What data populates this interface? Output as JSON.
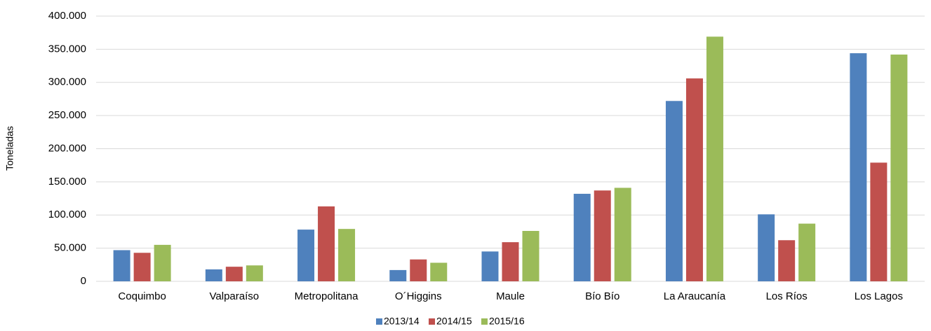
{
  "chart_data": {
    "type": "bar",
    "y_label": "Toneladas",
    "categories": [
      "Coquimbo",
      "Valparaíso",
      "Metropolitana",
      "O´Higgins",
      "Maule",
      "Bío Bío",
      "La Araucanía",
      "Los Ríos",
      "Los Lagos"
    ],
    "series": [
      {
        "name": "2013/14",
        "color": "#4f81bd",
        "values": [
          47000,
          18000,
          78000,
          17000,
          45000,
          132000,
          272000,
          101000,
          344000
        ]
      },
      {
        "name": "2014/15",
        "color": "#c0504d",
        "values": [
          43000,
          22000,
          113000,
          33000,
          59000,
          137000,
          306000,
          62000,
          179000
        ]
      },
      {
        "name": "2015/16",
        "color": "#9bbb59",
        "values": [
          55000,
          24000,
          79000,
          28000,
          76000,
          141000,
          369000,
          87000,
          342000
        ]
      }
    ],
    "ylim": [
      0,
      400000
    ],
    "yticks": [
      0,
      {
        "value": 50000,
        "label": "50.000"
      },
      {
        "value": 100000,
        "label": "100.000"
      },
      {
        "value": 150000,
        "label": "150.000"
      },
      {
        "value": 200000,
        "label": "200.000"
      },
      {
        "value": 250000,
        "label": "250.000"
      },
      {
        "value": 300000,
        "label": "300.000"
      },
      {
        "value": 350000,
        "label": "350.000"
      },
      {
        "value": 400000,
        "label": "400.000"
      }
    ],
    "grid": true,
    "legend": "bottom"
  }
}
